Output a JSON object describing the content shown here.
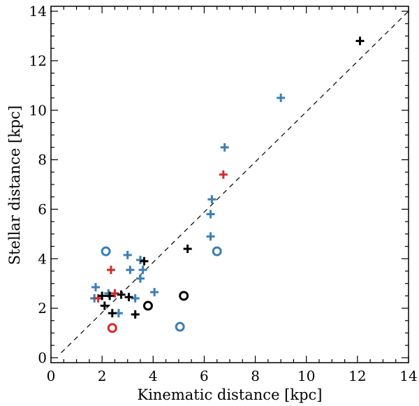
{
  "chart_data": {
    "type": "scatter",
    "xlabel": "Kinematic distance [kpc]",
    "ylabel": "Stellar distance [kpc]",
    "xlim": [
      0,
      14
    ],
    "ylim": [
      -0.2,
      14.2
    ],
    "xticks": [
      "0",
      "2",
      "4",
      "6",
      "8",
      "10",
      "12",
      "14"
    ],
    "yticks": [
      "0",
      "2",
      "4",
      "6",
      "8",
      "10",
      "12",
      "14"
    ],
    "grid": false,
    "reference_line": {
      "style": "dashed",
      "color": "#000000",
      "from": [
        0.4,
        0.2
      ],
      "to": [
        14,
        14
      ]
    },
    "series": [
      {
        "marker": "plus",
        "color": "#3a7fb7",
        "points": [
          [
            1.75,
            2.85
          ],
          [
            1.7,
            2.4
          ],
          [
            2.25,
            2.6
          ],
          [
            3.0,
            4.15
          ],
          [
            3.1,
            3.55
          ],
          [
            3.5,
            3.95
          ],
          [
            3.6,
            3.55
          ],
          [
            3.5,
            3.2
          ],
          [
            4.05,
            2.65
          ],
          [
            3.3,
            2.4
          ],
          [
            2.65,
            1.8
          ],
          [
            6.3,
            6.4
          ],
          [
            6.25,
            5.8
          ],
          [
            6.25,
            4.9
          ],
          [
            6.8,
            8.5
          ],
          [
            9.0,
            10.5
          ]
        ]
      },
      {
        "marker": "plus",
        "color": "#d42a2a",
        "points": [
          [
            2.35,
            3.55
          ],
          [
            1.85,
            2.4
          ],
          [
            2.5,
            2.6
          ],
          [
            6.75,
            7.4
          ]
        ]
      },
      {
        "marker": "plus",
        "color": "#000000",
        "points": [
          [
            2.0,
            2.5
          ],
          [
            2.3,
            2.5
          ],
          [
            2.75,
            2.55
          ],
          [
            3.05,
            2.45
          ],
          [
            2.1,
            2.1
          ],
          [
            2.4,
            1.8
          ],
          [
            3.3,
            1.75
          ],
          [
            3.65,
            3.9
          ],
          [
            5.35,
            4.4
          ],
          [
            12.1,
            12.8
          ]
        ]
      },
      {
        "marker": "circle",
        "color": "#3a7fb7",
        "points": [
          [
            2.15,
            4.3
          ],
          [
            6.5,
            4.3
          ],
          [
            5.05,
            1.25
          ]
        ]
      },
      {
        "marker": "circle",
        "color": "#d42a2a",
        "points": [
          [
            2.4,
            1.2
          ]
        ]
      },
      {
        "marker": "circle",
        "color": "#000000",
        "points": [
          [
            3.8,
            2.1
          ],
          [
            5.2,
            2.5
          ]
        ]
      }
    ]
  }
}
